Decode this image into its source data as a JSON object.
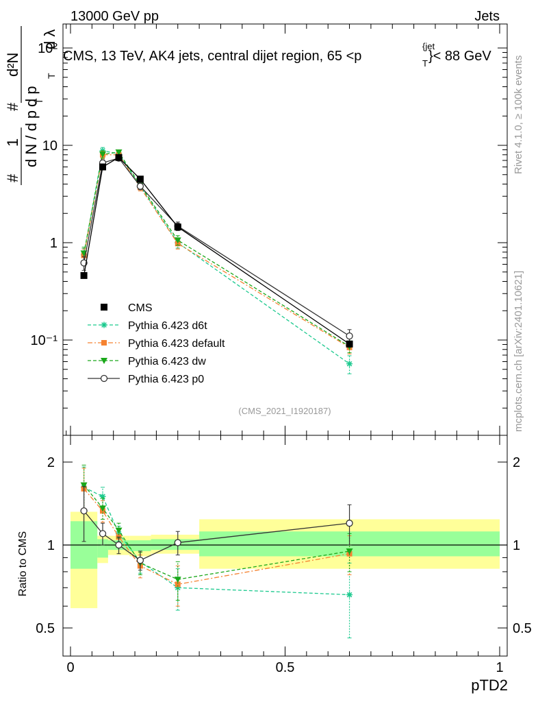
{
  "header": {
    "left": "13000 GeV pp",
    "right": "Jets"
  },
  "plot_title": {
    "prefix": "CMS, 13 TeV, AK4 jets, central dijet region, 65 <p",
    "sup": "{jet",
    "sub": "T",
    "suffix": "}< 88 GeV"
  },
  "side_labels": {
    "rivet": "Rivet 4.1.0, ≥ 100k events",
    "mcplots": "mcplots.cern.ch [arXiv:2401.10621]"
  },
  "watermark": "(CMS_2021_I1920187)",
  "ylabel_main": {
    "hash1": "#",
    "one": "1",
    "dN_over": "d N / d p",
    "T1": "T",
    "hash2": "#",
    "dp": "d p",
    "T2": "T",
    "d2N": "d²N",
    "dlambda": "d λ"
  },
  "chart_data": [
    {
      "type": "line",
      "panel": "main",
      "yscale": "log",
      "xlim": [
        -0.03,
        1.0
      ],
      "ylim": [
        0.01,
        200
      ],
      "ytick_labels": [
        "10⁻¹",
        "1",
        "10",
        "10²"
      ],
      "ytick_values": [
        0.1,
        1,
        10,
        100
      ],
      "x": [
        0.03125,
        0.075,
        0.1125,
        0.1625,
        0.25,
        0.65
      ],
      "series": [
        {
          "name": "CMS",
          "color": "#000000",
          "values": [
            0.46,
            6.0,
            7.5,
            4.5,
            1.45,
            0.091
          ],
          "err": [
            0.02,
            0.15,
            0.15,
            0.1,
            0.05,
            0.005
          ]
        },
        {
          "name": "Pythia 6.423 d6t",
          "color": "#1bc98e",
          "values": [
            0.75,
            8.8,
            8.2,
            3.8,
            1.0,
            0.057
          ],
          "err": [
            0.12,
            0.7,
            0.5,
            0.3,
            0.12,
            0.012
          ]
        },
        {
          "name": "Pythia 6.423 default",
          "color": "#f58230",
          "values": [
            0.74,
            8.0,
            8.0,
            3.7,
            0.98,
            0.084
          ],
          "err": [
            0.12,
            0.7,
            0.5,
            0.3,
            0.12,
            0.012
          ]
        },
        {
          "name": "Pythia 6.423 dw",
          "color": "#1aa81a",
          "values": [
            0.78,
            8.1,
            8.5,
            3.9,
            1.06,
            0.086
          ],
          "err": [
            0.12,
            0.7,
            0.5,
            0.3,
            0.12,
            0.012
          ]
        },
        {
          "name": "Pythia 6.423 p0",
          "color": "#333333",
          "values": [
            0.62,
            6.6,
            7.4,
            3.8,
            1.48,
            0.11
          ],
          "err": [
            0.1,
            0.5,
            0.4,
            0.3,
            0.15,
            0.018
          ]
        }
      ]
    },
    {
      "type": "line",
      "panel": "ratio",
      "ylabel": "Ratio to CMS",
      "xlabel": "pTD2",
      "xlim": [
        -0.03,
        1.0
      ],
      "ylim": [
        0.4,
        2.3
      ],
      "xtick_labels": [
        "0",
        "0.5",
        "1"
      ],
      "xtick_values": [
        0,
        0.5,
        1
      ],
      "ytick_labels": [
        "0.5",
        "1",
        "2"
      ],
      "ytick_values": [
        0.5,
        1,
        2
      ],
      "x": [
        0.03125,
        0.075,
        0.1125,
        0.1625,
        0.25,
        0.65
      ],
      "bands": {
        "edges": [
          0.0,
          0.0625,
          0.0875,
          0.1375,
          0.1875,
          0.3,
          1.0
        ],
        "yellow_lo": [
          0.59,
          0.86,
          0.92,
          0.91,
          0.93,
          0.82
        ],
        "yellow_hi": [
          1.32,
          1.08,
          1.08,
          1.08,
          1.09,
          1.24
        ],
        "green_lo": [
          0.82,
          0.9,
          0.96,
          0.95,
          0.96,
          0.91
        ],
        "green_hi": [
          1.22,
          1.05,
          1.04,
          1.04,
          1.05,
          1.12
        ]
      },
      "series": [
        {
          "name": "Pythia 6.423 d6t",
          "color": "#1bc98e",
          "values": [
            1.62,
            1.5,
            1.1,
            0.87,
            0.7,
            0.66
          ],
          "err": [
            0.3,
            0.12,
            0.07,
            0.08,
            0.12,
            0.2
          ]
        },
        {
          "name": "Pythia 6.423 default",
          "color": "#f58230",
          "values": [
            1.6,
            1.33,
            1.07,
            0.84,
            0.72,
            0.93
          ],
          "err": [
            0.3,
            0.12,
            0.07,
            0.08,
            0.12,
            0.15
          ]
        },
        {
          "name": "Pythia 6.423 dw",
          "color": "#1aa81a",
          "values": [
            1.65,
            1.36,
            1.13,
            0.86,
            0.75,
            0.95
          ],
          "err": [
            0.3,
            0.12,
            0.07,
            0.08,
            0.12,
            0.15
          ]
        },
        {
          "name": "Pythia 6.423 p0",
          "color": "#333333",
          "values": [
            1.33,
            1.1,
            1.0,
            0.88,
            1.02,
            1.2
          ],
          "err": [
            0.3,
            0.1,
            0.07,
            0.07,
            0.1,
            0.2
          ]
        }
      ]
    }
  ]
}
